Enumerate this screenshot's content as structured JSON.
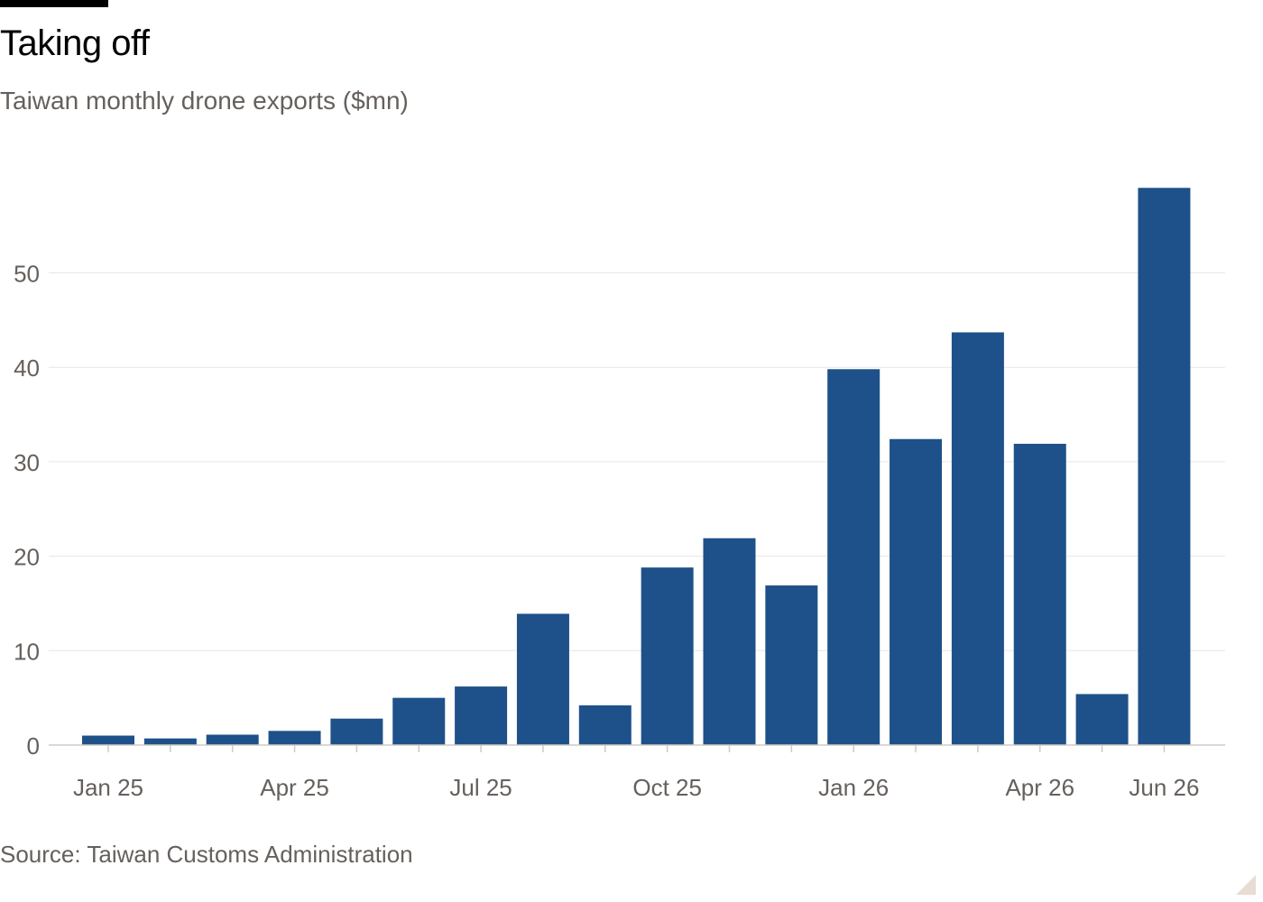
{
  "header": {
    "title": "Taking off",
    "subtitle": "Taiwan monthly drone exports ($mn)"
  },
  "footer": {
    "source": "Source: Taiwan Customs Administration"
  },
  "colors": {
    "bar": "#1e5189",
    "grid": "#ebe6e1",
    "axis_text": "#66605c",
    "baseline": "#cfcac5"
  },
  "chart_data": {
    "type": "bar",
    "title": "Taking off",
    "subtitle": "Taiwan monthly drone exports ($mn)",
    "xlabel": "",
    "ylabel": "",
    "categories": [
      "Jan 25",
      "Feb 25",
      "Mar 25",
      "Apr 25",
      "May 25",
      "Jun 25",
      "Jul 25",
      "Aug 25",
      "Sep 25",
      "Oct 25",
      "Nov 25",
      "Dec 25",
      "Jan 26",
      "Feb 26",
      "Mar 26",
      "Apr 26",
      "May 26",
      "Jun 26"
    ],
    "values": [
      1.0,
      0.7,
      1.1,
      1.5,
      2.8,
      5.0,
      6.2,
      13.9,
      4.2,
      18.8,
      21.9,
      16.9,
      39.8,
      32.4,
      43.7,
      31.9,
      5.4,
      59.0
    ],
    "x_tick_labels": [
      {
        "index": 0,
        "label": "Jan 25"
      },
      {
        "index": 3,
        "label": "Apr 25"
      },
      {
        "index": 6,
        "label": "Jul 25"
      },
      {
        "index": 9,
        "label": "Oct 25"
      },
      {
        "index": 12,
        "label": "Jan 26"
      },
      {
        "index": 15,
        "label": "Apr 26"
      },
      {
        "index": 17,
        "label": "Jun 26"
      }
    ],
    "y_ticks": [
      0,
      10,
      20,
      30,
      40,
      50
    ],
    "ylim": [
      0,
      60
    ],
    "grid": true,
    "legend": "none"
  }
}
